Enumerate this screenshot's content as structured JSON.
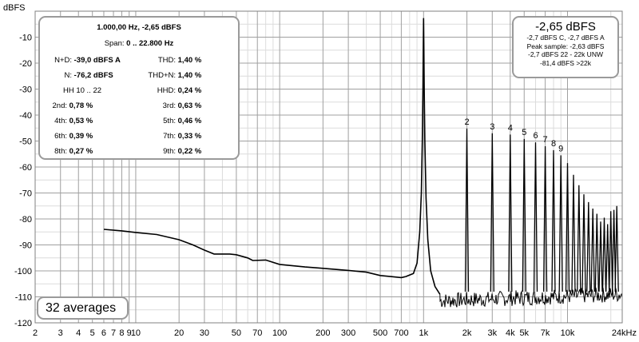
{
  "chart_data": {
    "type": "line",
    "y_unit_label": "dBFS",
    "x_unit": "Hz",
    "xscale": "log",
    "xlim": [
      2,
      24000
    ],
    "ylim": [
      -120,
      0
    ],
    "grid": true,
    "x_ticks": [
      {
        "v": 2,
        "label": "2"
      },
      {
        "v": 3,
        "label": "3"
      },
      {
        "v": 4,
        "label": "4"
      },
      {
        "v": 5,
        "label": "5"
      },
      {
        "v": 6,
        "label": "6"
      },
      {
        "v": 7,
        "label": "7"
      },
      {
        "v": 8,
        "label": "8"
      },
      {
        "v": 9,
        "label": "9"
      },
      {
        "v": 10,
        "label": "10"
      },
      {
        "v": 20,
        "label": "20"
      },
      {
        "v": 30,
        "label": "30"
      },
      {
        "v": 50,
        "label": "50"
      },
      {
        "v": 70,
        "label": "70"
      },
      {
        "v": 100,
        "label": "100"
      },
      {
        "v": 200,
        "label": "200"
      },
      {
        "v": 300,
        "label": "300"
      },
      {
        "v": 500,
        "label": "500"
      },
      {
        "v": 700,
        "label": "700"
      },
      {
        "v": 1000,
        "label": "1k"
      },
      {
        "v": 2000,
        "label": "2k"
      },
      {
        "v": 3000,
        "label": "3k"
      },
      {
        "v": 4000,
        "label": "4k"
      },
      {
        "v": 5000,
        "label": "5k"
      },
      {
        "v": 7000,
        "label": "7k"
      },
      {
        "v": 10000,
        "label": "10k"
      },
      {
        "v": 24000,
        "label": "24kHz"
      }
    ],
    "y_ticks": [
      {
        "v": -10,
        "label": "-10"
      },
      {
        "v": -20,
        "label": "-20"
      },
      {
        "v": -30,
        "label": "-30"
      },
      {
        "v": -40,
        "label": "-40"
      },
      {
        "v": -50,
        "label": "-50"
      },
      {
        "v": -60,
        "label": "-60"
      },
      {
        "v": -70,
        "label": "-70"
      },
      {
        "v": -80,
        "label": "-80"
      },
      {
        "v": -90,
        "label": "-90"
      },
      {
        "v": -100,
        "label": "-100"
      },
      {
        "v": -110,
        "label": "-110"
      },
      {
        "v": -120,
        "label": "-120"
      }
    ],
    "noise_floor": {
      "x": [
        6,
        8,
        10,
        14,
        20,
        25,
        30,
        35,
        45,
        50,
        60,
        65,
        80,
        100,
        150,
        200,
        300,
        400,
        500,
        600,
        700,
        750
      ],
      "y": [
        -84,
        -84.6,
        -85.2,
        -86,
        -88,
        -90,
        -92,
        -93.5,
        -93.5,
        -93.8,
        -95,
        -96,
        -95.8,
        -97.5,
        -98.5,
        -99,
        -99.8,
        -100.5,
        -101.8,
        -102.2,
        -102.6,
        -102.2
      ]
    },
    "fundamental": {
      "freq": 1000,
      "level": -2.65
    },
    "harmonics": [
      {
        "n": 2,
        "label": "2",
        "freq": 2000,
        "level": -45.2
      },
      {
        "n": 3,
        "label": "3",
        "freq": 3000,
        "level": -47
      },
      {
        "n": 4,
        "label": "4",
        "freq": 4000,
        "level": -47.5
      },
      {
        "n": 5,
        "label": "5",
        "freq": 5000,
        "level": -49.2
      },
      {
        "n": 6,
        "label": "6",
        "freq": 6000,
        "level": -50.5
      },
      {
        "n": 7,
        "label": "7",
        "freq": 7000,
        "level": -52
      },
      {
        "n": 8,
        "label": "8",
        "freq": 8000,
        "level": -53.5
      },
      {
        "n": 9,
        "label": "9",
        "freq": 9000,
        "level": -55.5
      },
      {
        "n": 10,
        "freq": 10000,
        "level": -58.5
      },
      {
        "n": 11,
        "freq": 11000,
        "level": -63
      },
      {
        "n": 12,
        "freq": 12000,
        "level": -67
      },
      {
        "n": 13,
        "freq": 13000,
        "level": -70.5
      },
      {
        "n": 14,
        "freq": 14000,
        "level": -73.5
      },
      {
        "n": 15,
        "freq": 15000,
        "level": -76
      },
      {
        "n": 16,
        "freq": 16000,
        "level": -78
      },
      {
        "n": 17,
        "freq": 17000,
        "level": -81
      },
      {
        "n": 18,
        "freq": 18000,
        "level": -79.5
      },
      {
        "n": 19,
        "freq": 19000,
        "level": -82
      },
      {
        "n": 20,
        "freq": 20000,
        "level": -77
      },
      {
        "n": 21,
        "freq": 21000,
        "level": -76.5
      },
      {
        "n": 22,
        "freq": 22000,
        "level": -75
      }
    ]
  },
  "stats_panel": {
    "header": "1.000,00 Hz, -2,65 dBFS",
    "span_label": "Span:",
    "span_value": "0 .. 22.800 Hz",
    "nd_label": "N+D:",
    "nd_value": "-39,0 dBFS A",
    "thd_label": "THD:",
    "thd_value": "1,40 %",
    "n_label": "N:",
    "n_value": "-76,2 dBFS",
    "thdn_label": "THD+N:",
    "thdn_value": "1,40 %",
    "hh_label": "HH 10 .. 22",
    "hhd_label": "HHD:",
    "hhd_value": "0,24 %",
    "h2_label": "2nd:",
    "h2_value": "0,78 %",
    "h3_label": "3rd:",
    "h3_value": "0,63 %",
    "h4_label": "4th:",
    "h4_value": "0,53 %",
    "h5_label": "5th:",
    "h5_value": "0,46 %",
    "h6_label": "6th:",
    "h6_value": "0,39 %",
    "h7_label": "7th:",
    "h7_value": "0,33 %",
    "h8_label": "8th:",
    "h8_value": "0,27 %",
    "h9_label": "9th:",
    "h9_value": "0,22 %"
  },
  "level_panel": {
    "big": "-2,65 dBFS",
    "line1": "-2,7 dBFS C, -2,7 dBFS A",
    "line2": "Peak sample: -2,63 dBFS",
    "line3": "-2,7 dBFS 22 - 22k UNW",
    "line4": "-81,4 dBFS >22k"
  },
  "averages_label": "32 averages",
  "colors": {
    "trace": "#000000",
    "grid_major": "#a0a0a0",
    "grid_minor": "#dcdcdc",
    "box_border": "#9a9a9a",
    "background": "#ffffff"
  }
}
